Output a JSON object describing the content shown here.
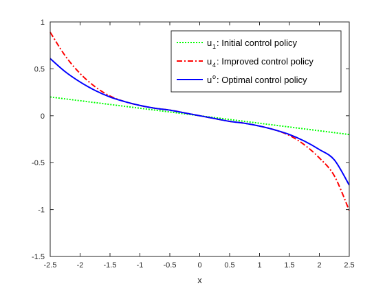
{
  "chart_data": {
    "type": "line",
    "xlabel": "x",
    "ylabel": "",
    "title": "",
    "xlim": [
      -2.5,
      2.5
    ],
    "ylim": [
      -1.5,
      1
    ],
    "xticks": [
      -2.5,
      -2,
      -1.5,
      -1,
      -0.5,
      0,
      0.5,
      1,
      1.5,
      2,
      2.5
    ],
    "yticks": [
      1,
      0.5,
      0,
      -0.5,
      -1,
      -1.5
    ],
    "xtick_labels": [
      "-2.5",
      "-2",
      "-1.5",
      "-1",
      "-0.5",
      "0",
      "0.5",
      "1",
      "1.5",
      "2",
      "2.5"
    ],
    "ytick_labels": [
      "1",
      "0.5",
      "0",
      "-0.5",
      "-1",
      "-1.5"
    ],
    "grid": false,
    "legend_position": "top-right",
    "x": [
      -2.5,
      -2.25,
      -2,
      -1.75,
      -1.5,
      -1.25,
      -1,
      -0.75,
      -0.5,
      -0.25,
      0,
      0.25,
      0.5,
      0.75,
      1,
      1.25,
      1.5,
      1.75,
      2,
      2.25,
      2.5
    ],
    "series": [
      {
        "name": "Initial control policy",
        "symbol": "u",
        "subscript": "1",
        "color": "#00ff00",
        "line_style": "dotted",
        "values": [
          0.2,
          0.18,
          0.16,
          0.14,
          0.12,
          0.1,
          0.08,
          0.06,
          0.04,
          0.02,
          0,
          -0.02,
          -0.04,
          -0.06,
          -0.08,
          -0.1,
          -0.12,
          -0.14,
          -0.16,
          -0.18,
          -0.2
        ]
      },
      {
        "name": "Improved control policy",
        "symbol": "u",
        "subscript": "4",
        "color": "#ff0000",
        "line_style": "dash-dot",
        "values": [
          0.89,
          0.64,
          0.45,
          0.31,
          0.21,
          0.15,
          0.11,
          0.08,
          0.06,
          0.03,
          0,
          -0.03,
          -0.06,
          -0.08,
          -0.11,
          -0.15,
          -0.21,
          -0.31,
          -0.45,
          -0.64,
          -1.01
        ]
      },
      {
        "name": "Optimal control policy",
        "symbol": "u",
        "superscript": "o",
        "color": "#0000ff",
        "line_style": "solid",
        "values": [
          0.61,
          0.47,
          0.36,
          0.27,
          0.2,
          0.15,
          0.11,
          0.08,
          0.06,
          0.03,
          0,
          -0.03,
          -0.06,
          -0.08,
          -0.11,
          -0.15,
          -0.2,
          -0.27,
          -0.36,
          -0.47,
          -0.74
        ]
      }
    ]
  }
}
